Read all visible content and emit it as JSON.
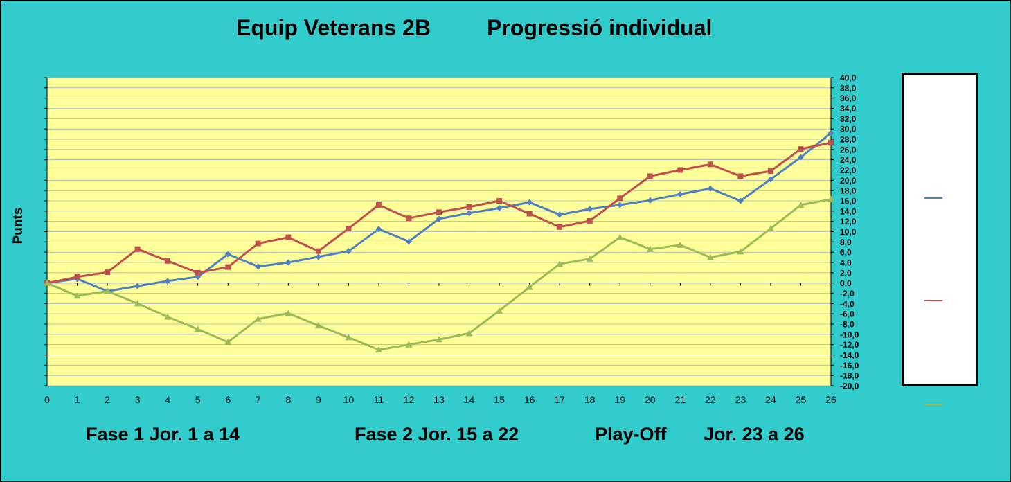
{
  "title": {
    "team": "Equip Veterans 2B",
    "subtitle": "Progressió individual"
  },
  "phases": {
    "phase1": "Fase 1 Jor. 1 a 14",
    "phase2": "Fase 2 Jor. 15 a 22",
    "playoff": "Play-Off",
    "playoff_range": "Jor. 23 a 26"
  },
  "colors": {
    "background": "#33cccc",
    "plot_area": "#ffff99",
    "series_blue": "#4f81bd",
    "series_red": "#c0504d",
    "series_green": "#9bbb59"
  },
  "chart_data": {
    "type": "line",
    "ylabel": "Punts",
    "xlabel": "",
    "x": [
      0,
      1,
      2,
      3,
      4,
      5,
      6,
      7,
      8,
      9,
      10,
      11,
      12,
      13,
      14,
      15,
      16,
      17,
      18,
      19,
      20,
      21,
      22,
      23,
      24,
      25,
      26
    ],
    "ylim": [
      -20,
      40
    ],
    "y_tick_step": 2,
    "y_tick_format": "0,0",
    "y_axis_side": "right",
    "grid": true,
    "legend_position": "right",
    "series": [
      {
        "color": "#4f81bd",
        "marker": "diamond",
        "values": [
          0,
          0.8,
          -1.6,
          -0.6,
          0.4,
          1.2,
          5.6,
          3.2,
          4.0,
          5.1,
          6.2,
          10.5,
          8.1,
          12.5,
          13.6,
          14.6,
          15.7,
          13.3,
          14.4,
          15.2,
          16.1,
          17.3,
          18.4,
          16.0,
          20.2,
          24.5,
          29.2
        ]
      },
      {
        "color": "#c0504d",
        "marker": "square",
        "values": [
          0,
          1.2,
          2.1,
          6.6,
          4.3,
          2.0,
          3.1,
          7.7,
          8.9,
          6.2,
          10.6,
          15.2,
          12.6,
          13.8,
          14.8,
          16.0,
          13.5,
          10.9,
          12.1,
          16.5,
          20.8,
          22.0,
          23.1,
          20.8,
          21.8,
          26.1,
          27.3
        ]
      },
      {
        "color": "#9bbb59",
        "marker": "triangle",
        "values": [
          0,
          -2.5,
          -1.6,
          -4.0,
          -6.6,
          -9.0,
          -11.5,
          -7.0,
          -5.9,
          -8.3,
          -10.6,
          -13.0,
          -12.0,
          -11.0,
          -9.8,
          -5.4,
          -0.8,
          3.7,
          4.7,
          8.9,
          6.6,
          7.4,
          5.0,
          6.1,
          10.6,
          15.2,
          16.3
        ]
      }
    ]
  }
}
